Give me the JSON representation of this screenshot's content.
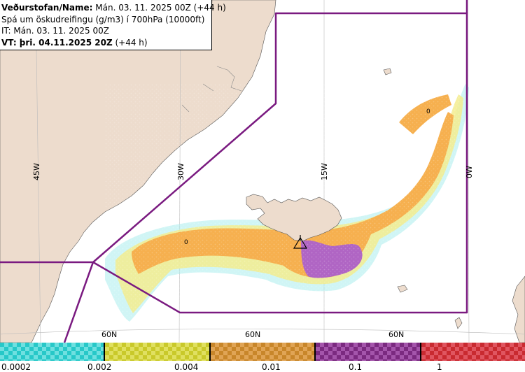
{
  "header": {
    "line1_bold": "Veðurstofan/Name:",
    "line1_rest": " Mán. 03. 11. 2025 00Z (+44 h)",
    "line2": "Spá um öskudreifingu (g/m3) í 700hPa (10000ft)",
    "line3": "IT: Mán. 03. 11. 2025 00Z",
    "line4_bold": "VT: þri. 04.11.2025 20Z",
    "line4_rest": " (+44 h)"
  },
  "map_labels": {
    "lon_45w": "45W",
    "lon_30w": "30W",
    "lon_15w": "15W",
    "lon_0w": "0W",
    "lat_60n_a": "60N",
    "lat_60n_b": "60N",
    "lat_60n_c": "60N",
    "zero_marker_1": "0",
    "zero_marker_2": "0"
  },
  "colors": {
    "land": "#eddccd",
    "sea": "#ffffff",
    "boundary": "#7a1a80",
    "grid": "#bbbbbb",
    "ash_low": "#a9ecec",
    "ash_yellow": "#f3ec8e",
    "ash_orange": "#f6b04f",
    "ash_purple": "#b065c4"
  },
  "legend": {
    "segments": [
      {
        "name": "cyan",
        "color": "#27c8c8",
        "alt": "#6fe0e0"
      },
      {
        "name": "yellow",
        "color": "#c9c92a",
        "alt": "#e0e060"
      },
      {
        "name": "orange",
        "color": "#c8862a",
        "alt": "#e0a455"
      },
      {
        "name": "purple",
        "color": "#7b2a80",
        "alt": "#a455ab"
      },
      {
        "name": "red",
        "color": "#c92a30",
        "alt": "#e05560"
      }
    ],
    "ticks": [
      "0.0002",
      "0.002",
      "0.004",
      "0.01",
      "0.1",
      "1"
    ]
  }
}
